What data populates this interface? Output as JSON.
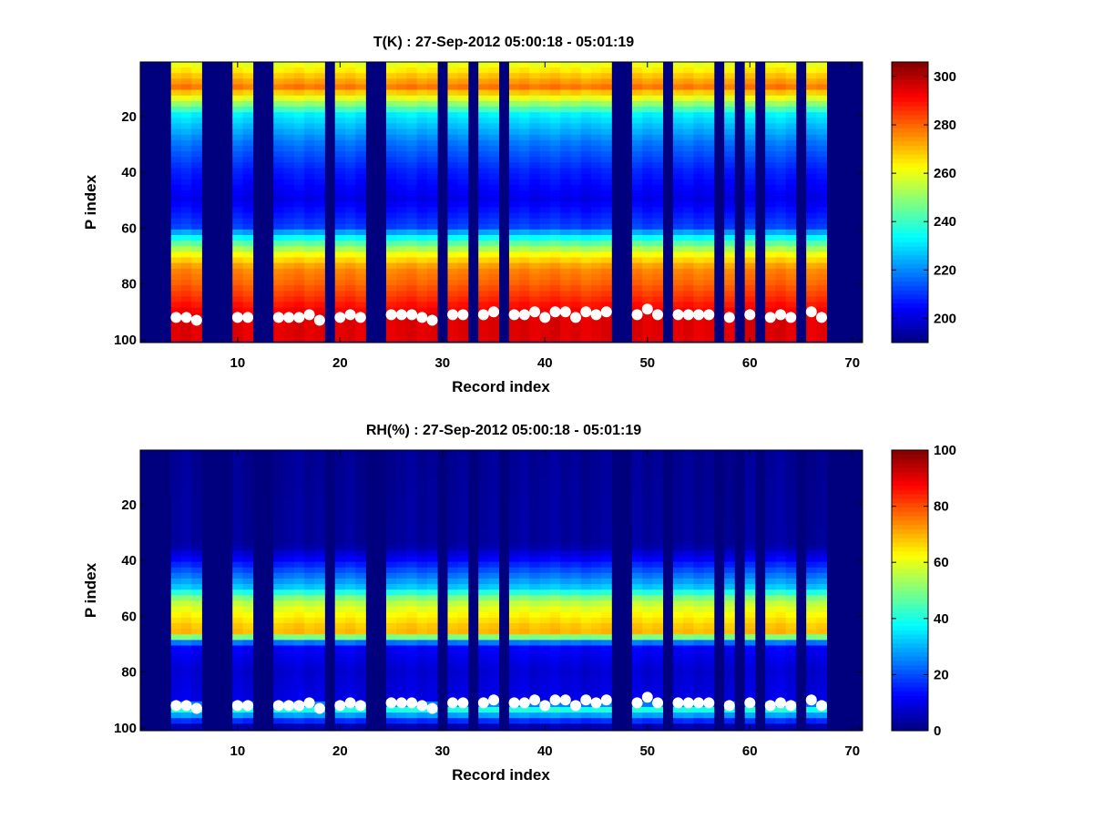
{
  "chart_data": [
    {
      "type": "heatmap",
      "title": "T(K) : 27-Sep-2012 05:00:18 - 05:01:19",
      "xlabel": "Record index",
      "ylabel": "P index",
      "xlim": [
        0.5,
        71
      ],
      "ylim": [
        0.5,
        101
      ],
      "y_reversed": true,
      "xticks": [
        10,
        20,
        30,
        40,
        50,
        60,
        70
      ],
      "yticks": [
        20,
        40,
        60,
        80,
        100
      ],
      "colorbar": {
        "min": 190,
        "max": 306,
        "ticks": [
          200,
          220,
          240,
          260,
          280,
          300
        ],
        "colormap": "jet"
      },
      "missing_value_color": "#00007f",
      "valid_records": [
        4,
        5,
        6,
        10,
        11,
        14,
        15,
        16,
        17,
        18,
        20,
        21,
        22,
        25,
        26,
        27,
        28,
        29,
        31,
        32,
        34,
        35,
        37,
        38,
        39,
        40,
        41,
        42,
        43,
        44,
        45,
        46,
        49,
        50,
        51,
        53,
        54,
        55,
        56,
        58,
        60,
        62,
        63,
        64,
        66,
        67
      ],
      "profile_description": {
        "rows": [
          1,
          10,
          20,
          30,
          40,
          50,
          60,
          65,
          70,
          75,
          80,
          86,
          92,
          100
        ],
        "values": [
          258,
          278,
          232,
          218,
          208,
          202,
          212,
          240,
          262,
          276,
          280,
          287,
          295,
          295
        ]
      },
      "surface_markers": {
        "records": [
          4,
          5,
          6,
          10,
          11,
          14,
          15,
          16,
          17,
          18,
          20,
          21,
          22,
          25,
          26,
          27,
          28,
          29,
          31,
          32,
          34,
          35,
          37,
          38,
          39,
          40,
          41,
          42,
          43,
          44,
          45,
          46,
          49,
          50,
          51,
          53,
          54,
          55,
          56,
          58,
          60,
          62,
          63,
          64,
          66,
          67
        ],
        "p_index": [
          92,
          92,
          93,
          92,
          92,
          92,
          92,
          92,
          91,
          93,
          92,
          91,
          92,
          91,
          91,
          91,
          92,
          93,
          91,
          91,
          91,
          90,
          91,
          91,
          90,
          92,
          90,
          90,
          92,
          90,
          91,
          90,
          91,
          89,
          91,
          91,
          91,
          91,
          91,
          92,
          91,
          92,
          91,
          92,
          90,
          92
        ],
        "color": "#ffffff"
      }
    },
    {
      "type": "heatmap",
      "title": "RH(%) : 27-Sep-2012 05:00:18 - 05:01:19",
      "xlabel": "Record index",
      "ylabel": "P index",
      "xlim": [
        0.5,
        71
      ],
      "ylim": [
        0.5,
        101
      ],
      "y_reversed": true,
      "xticks": [
        10,
        20,
        30,
        40,
        50,
        60,
        70
      ],
      "yticks": [
        20,
        40,
        60,
        80,
        100
      ],
      "colorbar": {
        "min": 0,
        "max": 100,
        "ticks": [
          0,
          20,
          40,
          60,
          80,
          100
        ],
        "colormap": "jet"
      },
      "missing_value_color": "#00007f",
      "valid_records": [
        4,
        5,
        6,
        10,
        11,
        14,
        15,
        16,
        17,
        18,
        20,
        21,
        22,
        25,
        26,
        27,
        28,
        29,
        31,
        32,
        34,
        35,
        37,
        38,
        39,
        40,
        41,
        42,
        43,
        44,
        45,
        46,
        49,
        50,
        51,
        53,
        54,
        55,
        56,
        58,
        60,
        62,
        63,
        64,
        66,
        67
      ],
      "profile_description": {
        "rows": [
          1,
          35,
          40,
          45,
          50,
          55,
          60,
          64,
          67,
          69,
          72,
          80,
          90,
          94,
          100
        ],
        "values": [
          2,
          3,
          12,
          22,
          32,
          55,
          63,
          68,
          70,
          30,
          12,
          8,
          10,
          40,
          5
        ]
      },
      "surface_markers": {
        "records": [
          4,
          5,
          6,
          10,
          11,
          14,
          15,
          16,
          17,
          18,
          20,
          21,
          22,
          25,
          26,
          27,
          28,
          29,
          31,
          32,
          34,
          35,
          37,
          38,
          39,
          40,
          41,
          42,
          43,
          44,
          45,
          46,
          49,
          50,
          51,
          53,
          54,
          55,
          56,
          58,
          60,
          62,
          63,
          64,
          66,
          67
        ],
        "p_index": [
          92,
          92,
          93,
          92,
          92,
          92,
          92,
          92,
          91,
          93,
          92,
          91,
          92,
          91,
          91,
          91,
          92,
          93,
          91,
          91,
          91,
          90,
          91,
          91,
          90,
          92,
          90,
          90,
          92,
          90,
          91,
          90,
          91,
          89,
          91,
          91,
          91,
          91,
          91,
          92,
          91,
          92,
          91,
          92,
          90,
          92
        ],
        "color": "#ffffff"
      }
    }
  ]
}
